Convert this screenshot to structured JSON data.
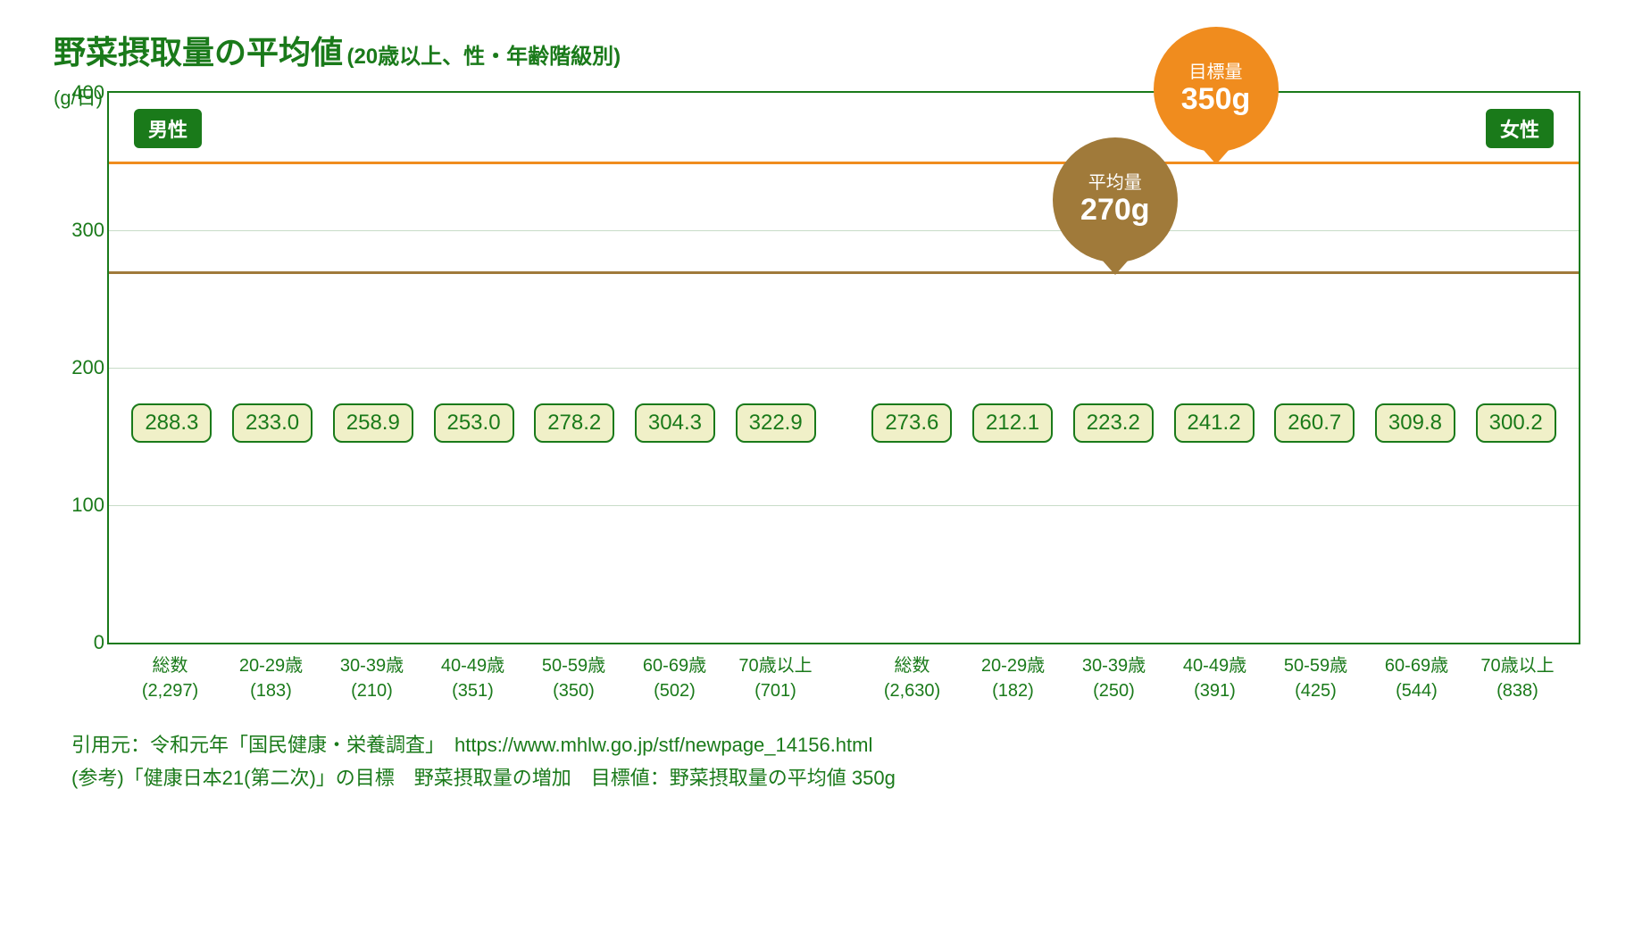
{
  "title_main": "野菜摂取量の平均値",
  "title_sub": "(20歳以上、性・年齢階級別)",
  "y_axis_label": "(g/日)",
  "chart": {
    "type": "bar",
    "ylim": [
      0,
      400
    ],
    "yticks": [
      0,
      100,
      200,
      300,
      400
    ],
    "grid_color": "#c8dcc8",
    "bar_color": "#1a7a1a",
    "border_color": "#1a7a1a",
    "background_color": "#ffffff",
    "value_label_bg": "#f0f0c8",
    "value_label_border": "#1a7a1a",
    "value_label_text": "#1a7a1a",
    "value_strip_y": 160,
    "target_line": {
      "value": 350,
      "color": "#f08c1e",
      "width": 3
    },
    "avg_line": {
      "value": 270,
      "color": "#a07a3a",
      "width": 3
    },
    "gender_badges": {
      "male": "男性",
      "female": "女性",
      "bg": "#1a7a1a",
      "text": "#ffffff"
    },
    "target_bubble": {
      "label_small": "目標量",
      "label_big": "350g",
      "bg": "#f08c1e",
      "diameter": 140,
      "center_bar_index": 10
    },
    "avg_bubble": {
      "label_small": "平均量",
      "label_big": "270g",
      "bg": "#a07a3a",
      "diameter": 140,
      "center_bar_index": 9
    },
    "groups": [
      {
        "name": "male",
        "bars": [
          {
            "category": "総数",
            "n": "(2,297)",
            "value": 288.3,
            "value_label": "288.3"
          },
          {
            "category": "20-29歳",
            "n": "(183)",
            "value": 233.0,
            "value_label": "233.0"
          },
          {
            "category": "30-39歳",
            "n": "(210)",
            "value": 258.9,
            "value_label": "258.9"
          },
          {
            "category": "40-49歳",
            "n": "(351)",
            "value": 253.0,
            "value_label": "253.0"
          },
          {
            "category": "50-59歳",
            "n": "(350)",
            "value": 278.2,
            "value_label": "278.2"
          },
          {
            "category": "60-69歳",
            "n": "(502)",
            "value": 304.3,
            "value_label": "304.3"
          },
          {
            "category": "70歳以上",
            "n": "(701)",
            "value": 322.9,
            "value_label": "322.9"
          }
        ]
      },
      {
        "name": "female",
        "bars": [
          {
            "category": "総数",
            "n": "(2,630)",
            "value": 273.6,
            "value_label": "273.6"
          },
          {
            "category": "20-29歳",
            "n": "(182)",
            "value": 212.1,
            "value_label": "212.1"
          },
          {
            "category": "30-39歳",
            "n": "(250)",
            "value": 223.2,
            "value_label": "223.2"
          },
          {
            "category": "40-49歳",
            "n": "(391)",
            "value": 241.2,
            "value_label": "241.2"
          },
          {
            "category": "50-59歳",
            "n": "(425)",
            "value": 260.7,
            "value_label": "260.7"
          },
          {
            "category": "60-69歳",
            "n": "(544)",
            "value": 309.8,
            "value_label": "309.8"
          },
          {
            "category": "70歳以上",
            "n": "(838)",
            "value": 300.2,
            "value_label": "300.2"
          }
        ]
      }
    ]
  },
  "footer": {
    "line1": "引用元：令和元年「国民健康・栄養調査」　https://www.mhlw.go.jp/stf/newpage_14156.html",
    "line2": "(参考)「健康日本21(第二次)」の目標　野菜摂取量の増加　目標値：野菜摂取量の平均値 350g"
  }
}
